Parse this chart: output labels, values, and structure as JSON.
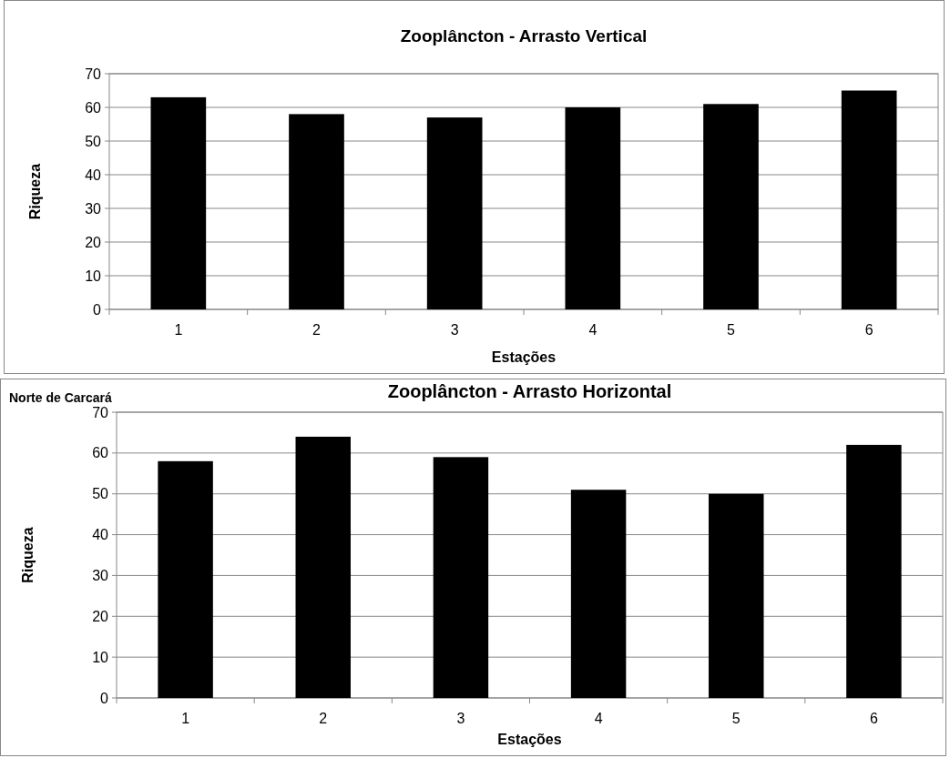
{
  "chart_data": [
    {
      "type": "bar",
      "title": "Zooplâncton - Arrasto Vertical",
      "xlabel": "Estações",
      "ylabel": "Riqueza",
      "categories": [
        "1",
        "2",
        "3",
        "4",
        "5",
        "6"
      ],
      "values": [
        63,
        58,
        57,
        60,
        61,
        65
      ],
      "color": "#000000",
      "ylim": [
        0,
        70
      ],
      "yticks": [
        0,
        10,
        20,
        30,
        40,
        50,
        60,
        70
      ],
      "grid": "y"
    },
    {
      "type": "bar",
      "title": "Zooplâncton - Arrasto Horizontal",
      "xlabel": "Estações",
      "ylabel": "Riqueza",
      "annotations": [
        "Norte de Carcará"
      ],
      "categories": [
        "1",
        "2",
        "3",
        "4",
        "5",
        "6"
      ],
      "values": [
        58,
        64,
        59,
        51,
        50,
        62
      ],
      "color": "#000000",
      "ylim": [
        0,
        70
      ],
      "yticks": [
        0,
        10,
        20,
        30,
        40,
        50,
        60,
        70
      ],
      "grid": "y"
    }
  ]
}
